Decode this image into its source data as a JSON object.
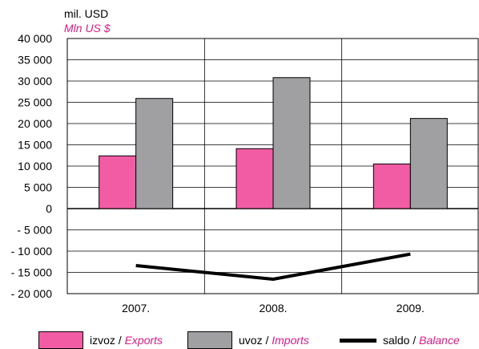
{
  "chart_data": {
    "type": "bar",
    "unit_label": "mil. USD",
    "unit_label_en": "Mln US $",
    "categories": [
      "2007.",
      "2008.",
      "2009."
    ],
    "series": [
      {
        "name": "izvoz / Exports",
        "name_local": "izvoz /",
        "name_en": "Exports",
        "type": "bar",
        "color": "#f15ca4",
        "values": [
          12400,
          14100,
          10500
        ]
      },
      {
        "name": "uvoz / Imports",
        "name_local": "uvoz /",
        "name_en": "Imports",
        "type": "bar",
        "color": "#a0a0a2",
        "values": [
          25900,
          30800,
          21200
        ]
      },
      {
        "name": "saldo / Balance",
        "name_local": "saldo /",
        "name_en": "Balance",
        "type": "line",
        "color": "#000000",
        "values": [
          -13400,
          -16600,
          -10700
        ]
      }
    ],
    "yticks": [
      "40 000",
      "35 000",
      "30 000",
      "25 000",
      "20 000",
      "15 000",
      "10 000",
      "5 000",
      "0",
      "- 5 000",
      "- 10 000",
      "- 15 000",
      "- 20 000"
    ],
    "ylim": [
      -20000,
      40000
    ],
    "grid": true,
    "legend_position": "bottom"
  }
}
